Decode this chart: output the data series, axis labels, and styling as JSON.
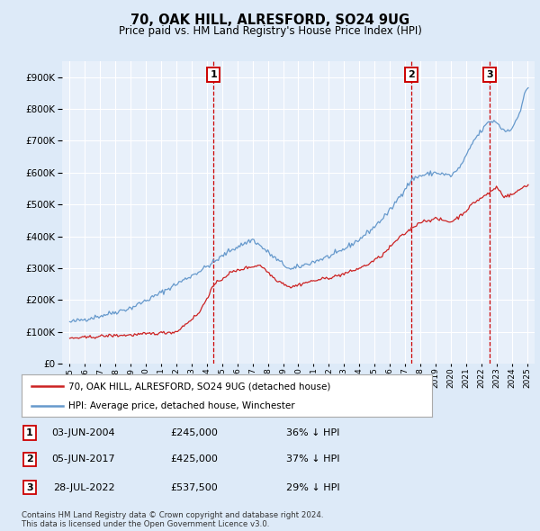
{
  "title": "70, OAK HILL, ALRESFORD, SO24 9UG",
  "subtitle": "Price paid vs. HM Land Registry's House Price Index (HPI)",
  "legend_label_red": "70, OAK HILL, ALRESFORD, SO24 9UG (detached house)",
  "legend_label_blue": "HPI: Average price, detached house, Winchester",
  "footer": "Contains HM Land Registry data © Crown copyright and database right 2024.\nThis data is licensed under the Open Government Licence v3.0.",
  "sales": [
    {
      "num": 1,
      "date": "03-JUN-2004",
      "price": 245000,
      "pct": "36%",
      "dir": "↓",
      "x_year": 2004.43
    },
    {
      "num": 2,
      "date": "05-JUN-2017",
      "price": 425000,
      "pct": "37%",
      "dir": "↓",
      "x_year": 2017.43
    },
    {
      "num": 3,
      "date": "28-JUL-2022",
      "price": 537500,
      "pct": "29%",
      "dir": "↓",
      "x_year": 2022.57
    }
  ],
  "ylim": [
    0,
    950000
  ],
  "yticks": [
    0,
    100000,
    200000,
    300000,
    400000,
    500000,
    600000,
    700000,
    800000,
    900000
  ],
  "xlim_start": 1994.5,
  "xlim_end": 2025.5,
  "background_color": "#ddeaf8",
  "plot_bg_color": "#e8f0fa",
  "line_color_red": "#cc2222",
  "line_color_blue": "#6699cc",
  "grid_color": "#ffffff",
  "vline_color": "#cc0000"
}
